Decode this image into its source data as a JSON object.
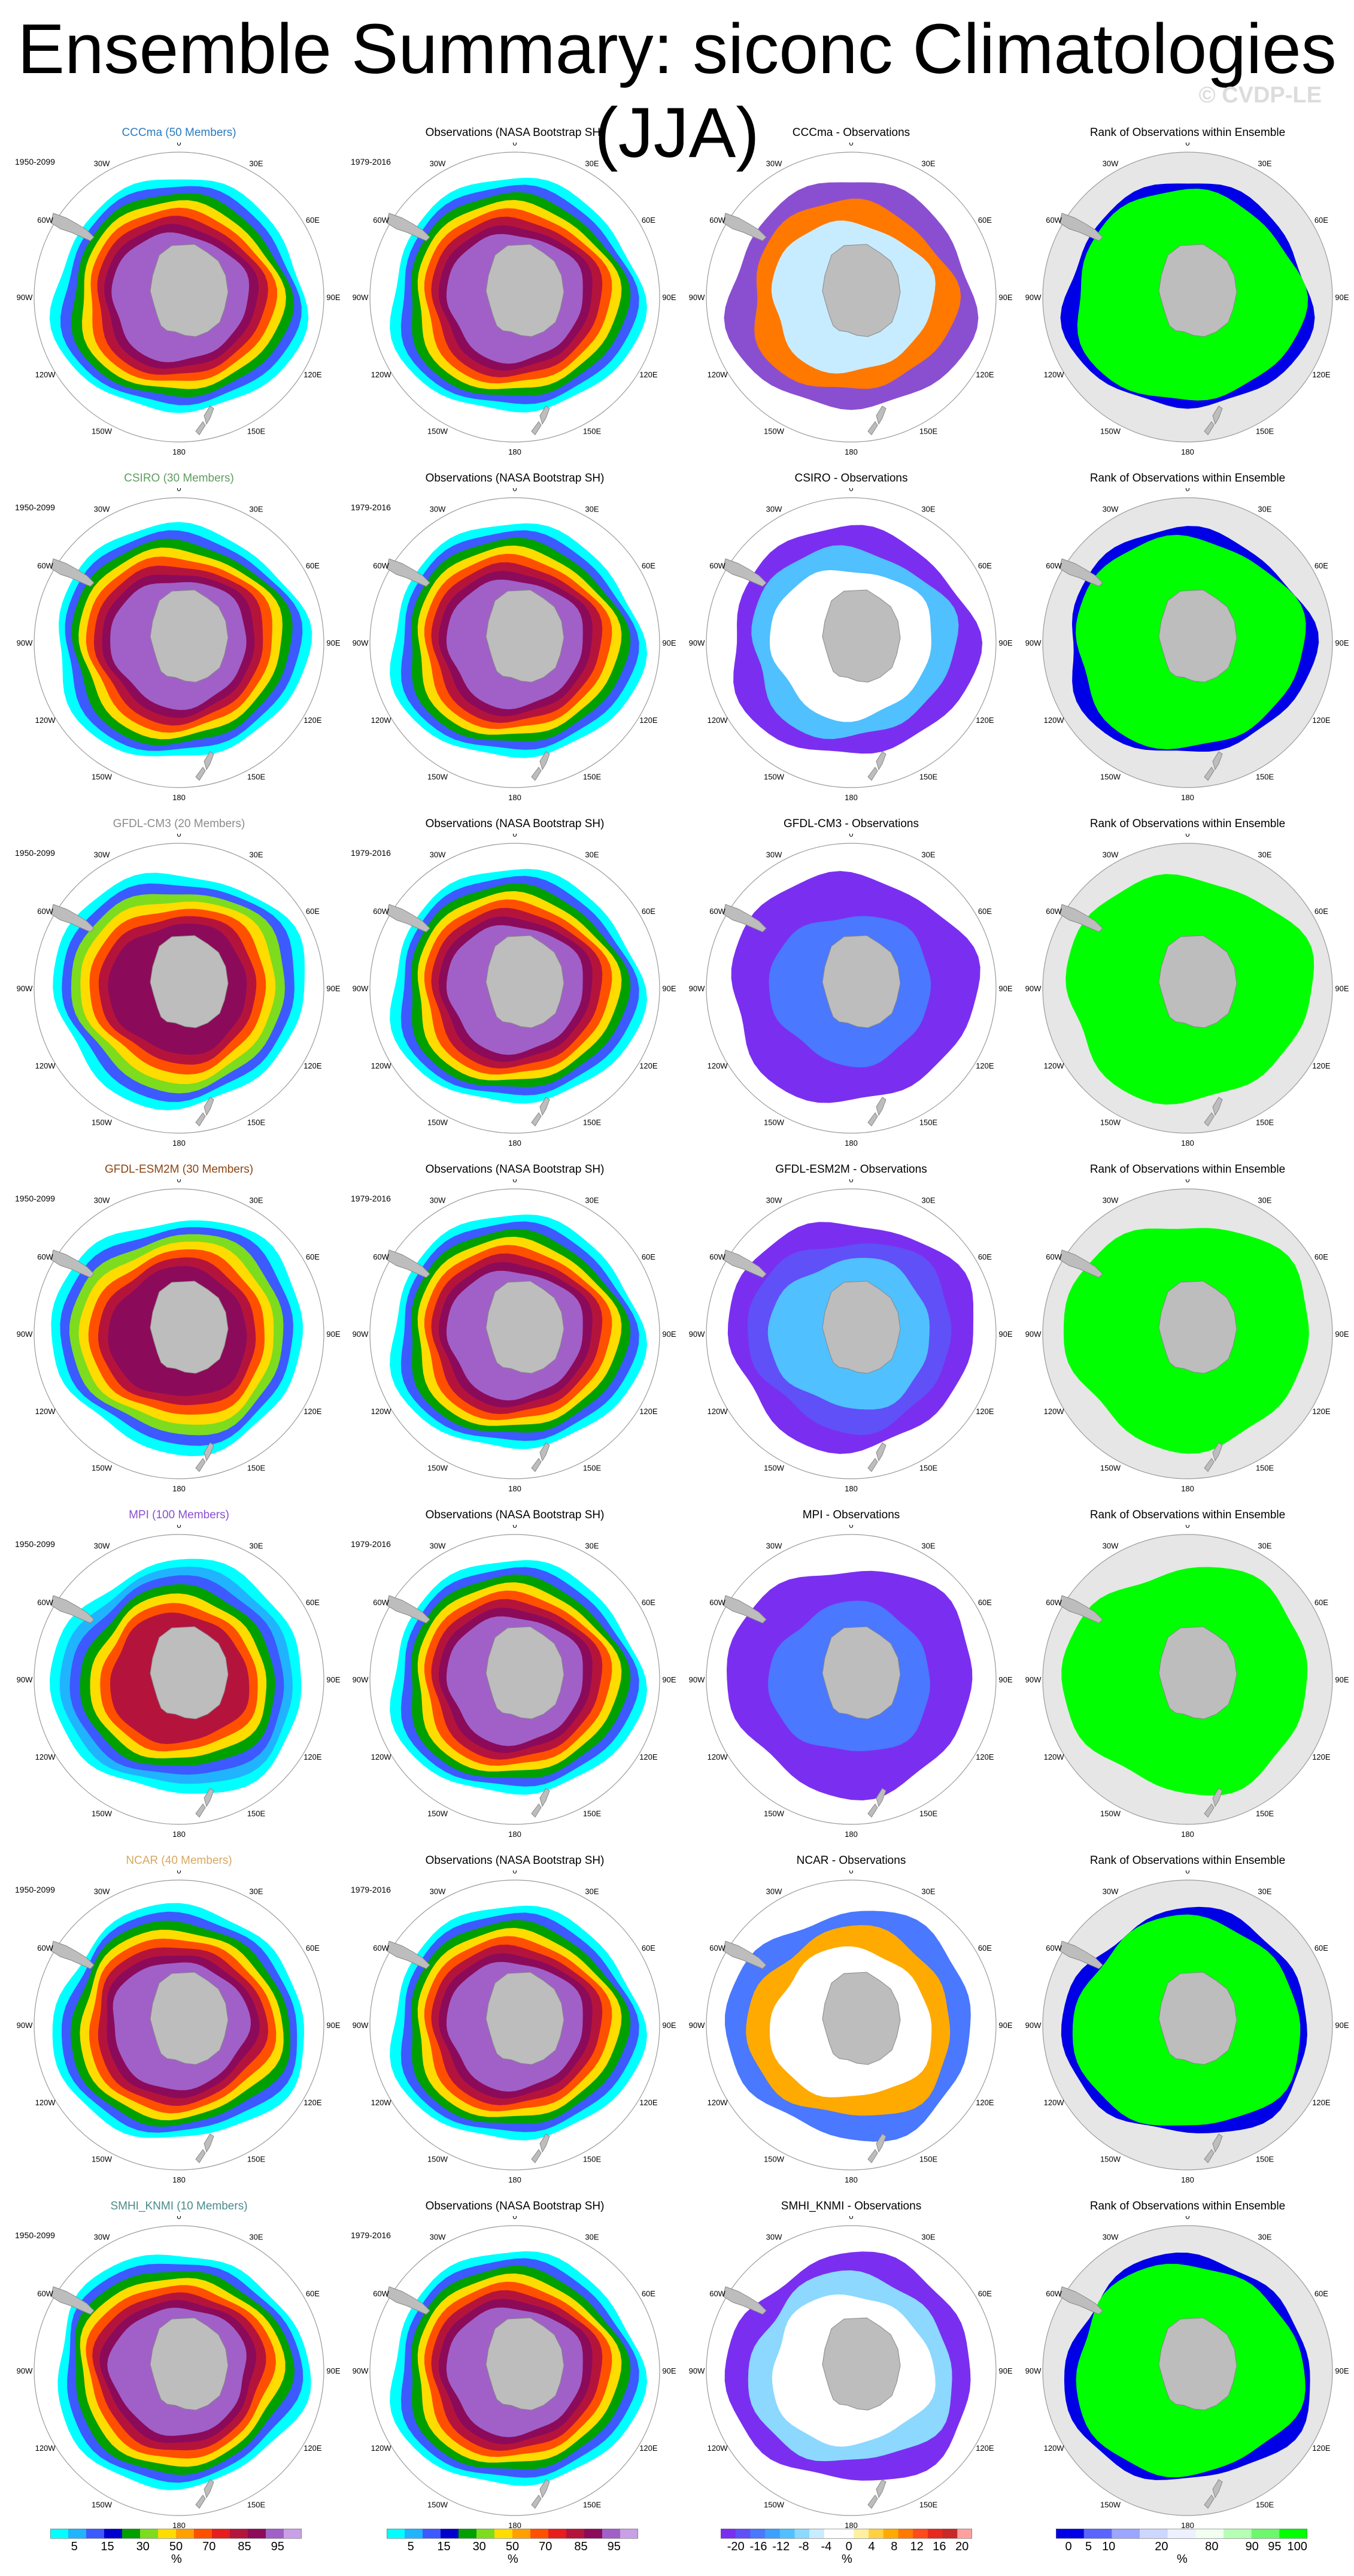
{
  "title": "Ensemble Summary: siconc Climatologies (JJA)",
  "credit": "© CVDP-LE",
  "obs_title": "Observations (NASA Bootstrap SH)",
  "rank_title": "Rank of Observations within Ensemble",
  "model_period": "1950-2099",
  "obs_period": "1979-2016",
  "models": [
    {
      "id": "ccc",
      "title": "CCCma (50 Members)",
      "diff_title": "CCCma - Observations",
      "color": "#2a7bbf"
    },
    {
      "id": "csiro",
      "title": "CSIRO (30 Members)",
      "diff_title": "CSIRO - Observations",
      "color": "#5f9c5f"
    },
    {
      "id": "gfdl3",
      "title": "GFDL-CM3 (20 Members)",
      "diff_title": "GFDL-CM3 - Observations",
      "color": "#8c8c8c"
    },
    {
      "id": "gfdle",
      "title": "GFDL-ESM2M (30 Members)",
      "diff_title": "GFDL-ESM2M - Observations",
      "color": "#8b4513"
    },
    {
      "id": "mpi",
      "title": "MPI (100 Members)",
      "diff_title": "MPI - Observations",
      "color": "#8a4fd0"
    },
    {
      "id": "ncar",
      "title": "NCAR (40 Members)",
      "diff_title": "NCAR - Observations",
      "color": "#d8a860"
    },
    {
      "id": "smhi",
      "title": "SMHI_KNMI (10 Members)",
      "diff_title": "SMHI_KNMI - Observations",
      "color": "#4a8a8a"
    }
  ],
  "lon_labels": [
    "0",
    "30E",
    "60E",
    "90E",
    "120E",
    "150E",
    "180",
    "150W",
    "120W",
    "90W",
    "60W",
    "30W"
  ],
  "colorbars": {
    "conc": {
      "ticks": [
        "5",
        "15",
        "30",
        "50",
        "70",
        "85",
        "95"
      ],
      "unit": "%",
      "colors": [
        "#00ffff",
        "#20b4ff",
        "#3c5aff",
        "#0000cd",
        "#00a000",
        "#7ddc1e",
        "#ffdc00",
        "#ffa000",
        "#ff5000",
        "#e61e1e",
        "#b4143c",
        "#8c0a5a",
        "#a060c8",
        "#c8a0e6"
      ]
    },
    "diff": {
      "ticks": [
        "-20",
        "-16",
        "-12",
        "-8",
        "-4",
        "0",
        "4",
        "8",
        "12",
        "16",
        "20"
      ],
      "unit": "%",
      "colors": [
        "#7a2ff0",
        "#6050f8",
        "#4a78ff",
        "#3ca0ff",
        "#50c0ff",
        "#8cd8ff",
        "#c8ecff",
        "#ffffff",
        "#ffffff",
        "#fff0a0",
        "#ffd040",
        "#ffaa00",
        "#ff7800",
        "#ff4a1e",
        "#e6281e",
        "#c82828",
        "#ffa0a0"
      ]
    },
    "rank": {
      "ticks": [
        "0",
        "5",
        "10",
        "20",
        "80",
        "90",
        "95",
        "100"
      ],
      "unit": "%",
      "colors": [
        "#0000e6",
        "#5a64ff",
        "#9aa6ff",
        "#cdd6ff",
        "#ecf0ff",
        "#f0fff0",
        "#b4ffb4",
        "#6cf76c",
        "#00ff00"
      ]
    }
  }
}
